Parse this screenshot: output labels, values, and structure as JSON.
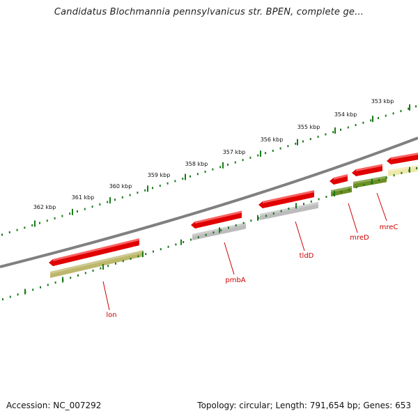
{
  "title": "Candidatus Blochmannia pennsylvanicus str. BPEN, complete ge...",
  "accession_text": "Accession: NC_007292",
  "summary_text": "Topology: circular; Length: 791,654 bp; Genes: 653",
  "ruler": {
    "labels": [
      "353 kbp",
      "354 kbp",
      "355 kbp",
      "356 kbp",
      "357 kbp",
      "358 kbp",
      "359 kbp",
      "360 kbp",
      "361 kbp",
      "362 kbp"
    ],
    "color": "#1a7a1a"
  },
  "genes": [
    {
      "label": "lon",
      "feature_color": "#e00000",
      "product_color": "#bdb76b"
    },
    {
      "label": "pmbA",
      "feature_color": "#e00000",
      "product_color": "#bcbcbc"
    },
    {
      "label": "tldD",
      "feature_color": "#e00000",
      "product_color": "#bcbcbc"
    },
    {
      "label": "mreD",
      "feature_color": "#e00000",
      "product_color": "#6b8e23"
    },
    {
      "label": "mreC",
      "feature_color": "#e00000",
      "product_color": "#6b8e23"
    },
    {
      "label": "",
      "feature_color": "#e00000",
      "product_color": "#eee8aa"
    }
  ],
  "backbone_color": "#808080"
}
